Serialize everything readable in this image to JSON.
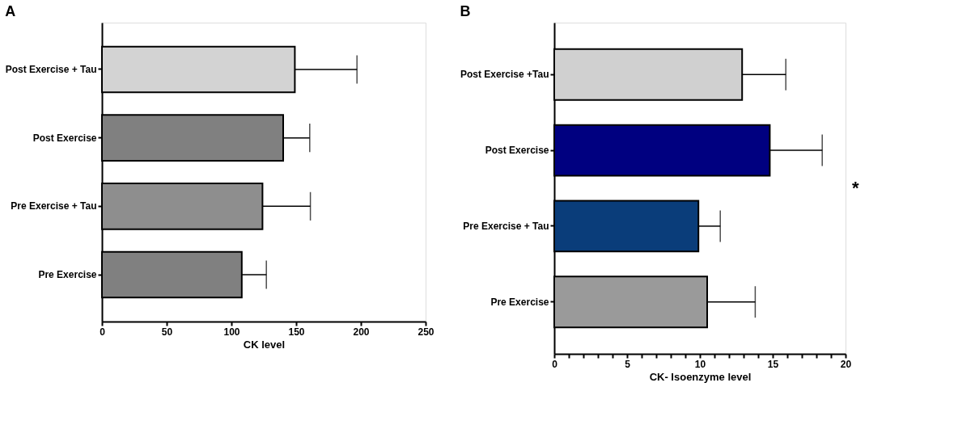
{
  "chart_data": [
    {
      "type": "bar",
      "orientation": "horizontal",
      "title": "A",
      "xlabel": "CK level",
      "categories": [
        "Post Exercise + Tau",
        "Post Exercise",
        "Pre Exercise + Tau",
        "Pre Exercise"
      ],
      "values": [
        149,
        140,
        124,
        108
      ],
      "colors": [
        "#d3d3d3",
        "#808080",
        "#8e8e8e",
        "#808080"
      ],
      "errors": [
        [
          149,
          197
        ],
        [
          140,
          160.5
        ],
        [
          124,
          161
        ],
        [
          108,
          127
        ]
      ],
      "xlim": [
        0,
        250
      ],
      "xticks": [
        0,
        50,
        100,
        150,
        200,
        250
      ],
      "grid": false
    },
    {
      "type": "bar",
      "orientation": "horizontal",
      "title": "B",
      "xlabel": "CK- Isoenzyme level",
      "categories": [
        "Post Exercise +Tau",
        "Post Exercise",
        "Pre Exercise  + Tau",
        "Pre Exercise"
      ],
      "values": [
        12.9,
        14.8,
        9.9,
        10.5
      ],
      "colors": [
        "#d0d0d0",
        "#000080",
        "#0a3d7a",
        "#9a9a9a"
      ],
      "errors": [
        [
          12.9,
          15.9
        ],
        [
          14.8,
          18.4
        ],
        [
          9.9,
          11.4
        ],
        [
          10.5,
          13.8
        ]
      ],
      "xlim": [
        0,
        20
      ],
      "xticks": [
        0,
        {
          "value": 1,
          "label": null
        },
        {
          "value": 2,
          "label": null
        },
        {
          "value": 3,
          "label": null
        },
        {
          "value": 4,
          "label": null
        },
        5,
        {
          "value": 6,
          "label": null
        },
        {
          "value": 7,
          "label": null
        },
        {
          "value": 8,
          "label": null
        },
        {
          "value": 9,
          "label": null
        },
        10,
        {
          "value": 11,
          "label": null
        },
        {
          "value": 12,
          "label": null
        },
        {
          "value": 13,
          "label": null
        },
        {
          "value": 14,
          "label": null
        },
        15,
        {
          "value": 16,
          "label": null
        },
        {
          "value": 17,
          "label": null
        },
        {
          "value": 18,
          "label": null
        },
        {
          "value": 19,
          "label": null
        },
        20
      ],
      "annotations": [
        "*"
      ],
      "grid": false
    }
  ]
}
